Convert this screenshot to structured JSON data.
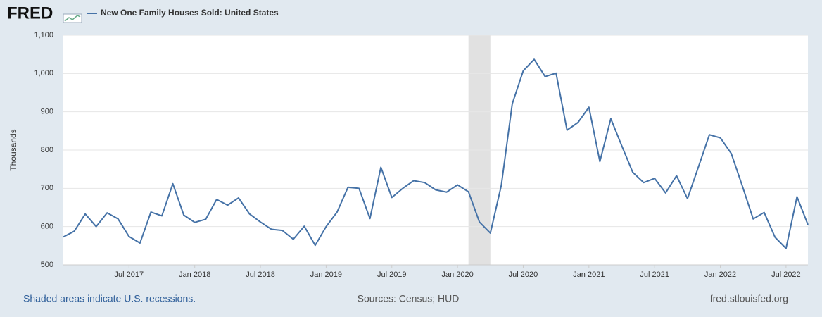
{
  "chart_data": {
    "type": "line",
    "logo": "FRED",
    "title": "New One Family Houses Sold: United States",
    "y_axis_label": "Thousands",
    "x": [
      "2017-01",
      "2017-02",
      "2017-03",
      "2017-04",
      "2017-05",
      "2017-06",
      "2017-07",
      "2017-08",
      "2017-09",
      "2017-10",
      "2017-11",
      "2017-12",
      "2018-01",
      "2018-02",
      "2018-03",
      "2018-04",
      "2018-05",
      "2018-06",
      "2018-07",
      "2018-08",
      "2018-09",
      "2018-10",
      "2018-11",
      "2018-12",
      "2019-01",
      "2019-02",
      "2019-03",
      "2019-04",
      "2019-05",
      "2019-06",
      "2019-07",
      "2019-08",
      "2019-09",
      "2019-10",
      "2019-11",
      "2019-12",
      "2020-01",
      "2020-02",
      "2020-03",
      "2020-04",
      "2020-05",
      "2020-06",
      "2020-07",
      "2020-08",
      "2020-09",
      "2020-10",
      "2020-11",
      "2020-12",
      "2021-01",
      "2021-02",
      "2021-03",
      "2021-04",
      "2021-05",
      "2021-06",
      "2021-07",
      "2021-08",
      "2021-09",
      "2021-10",
      "2021-11",
      "2021-12",
      "2022-01",
      "2022-02",
      "2022-03",
      "2022-04",
      "2022-05",
      "2022-06",
      "2022-07",
      "2022-08",
      "2022-09"
    ],
    "series": [
      {
        "name": "New One Family Houses Sold: United States",
        "color": "#4572a7",
        "values": [
          573,
          588,
          633,
          600,
          636,
          620,
          574,
          557,
          638,
          628,
          712,
          630,
          611,
          619,
          671,
          656,
          675,
          633,
          612,
          593,
          590,
          567,
          601,
          551,
          600,
          638,
          703,
          700,
          621,
          755,
          676,
          700,
          720,
          715,
          696,
          690,
          709,
          691,
          612,
          583,
          708,
          921,
          1007,
          1037,
          992,
          1001,
          852,
          872,
          912,
          770,
          882,
          811,
          742,
          715,
          726,
          688,
          733,
          673,
          756,
          840,
          832,
          791,
          707,
          620,
          637,
          572,
          543,
          678,
          605
        ]
      }
    ],
    "recessions": [
      {
        "start": "2020-02",
        "end": "2020-04"
      }
    ],
    "xlim": [
      "2017-01",
      "2022-09"
    ],
    "xticks": [
      {
        "value": "2017-07",
        "label": "Jul 2017"
      },
      {
        "value": "2018-01",
        "label": "Jan 2018"
      },
      {
        "value": "2018-07",
        "label": "Jul 2018"
      },
      {
        "value": "2019-01",
        "label": "Jan 2019"
      },
      {
        "value": "2019-07",
        "label": "Jul 2019"
      },
      {
        "value": "2020-01",
        "label": "Jan 2020"
      },
      {
        "value": "2020-07",
        "label": "Jul 2020"
      },
      {
        "value": "2021-01",
        "label": "Jan 2021"
      },
      {
        "value": "2021-07",
        "label": "Jul 2021"
      },
      {
        "value": "2022-01",
        "label": "Jan 2022"
      },
      {
        "value": "2022-07",
        "label": "Jul 2022"
      }
    ],
    "ylim": [
      500,
      1100
    ],
    "yticks": [
      500,
      600,
      700,
      800,
      900,
      {
        "value": 1000,
        "label": "1,000"
      },
      {
        "value": 1100,
        "label": "1,100"
      }
    ],
    "grid": true,
    "footnote": "Shaded areas indicate U.S. recessions.",
    "source": "Sources: Census; HUD",
    "site": "fred.stlouisfed.org"
  }
}
